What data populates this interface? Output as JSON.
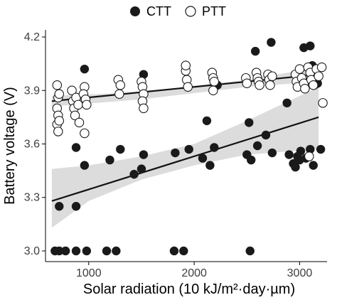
{
  "chart_data": {
    "type": "scatter",
    "xlabel": "Solar radiation (10 kJ/m²·day·µm)",
    "ylabel": "Battery voltage (V)",
    "xlim": [
      590,
      3260
    ],
    "ylim": [
      2.94,
      4.24
    ],
    "x_ticks": [
      1000,
      2000,
      3000
    ],
    "x_tick_labels": [
      "1000",
      "2000",
      "3000"
    ],
    "y_ticks": [
      3.0,
      3.3,
      3.6,
      3.9,
      4.2
    ],
    "y_tick_labels": [
      "3.0",
      "3.3",
      "3.6",
      "3.9",
      "4.2"
    ],
    "grid": false,
    "legend_position": "top-center",
    "colors": {
      "ctt": "#1a1a1a",
      "ptt_fill": "#ffffff",
      "ptt_stroke": "#1a1a1a",
      "band": "#d3d3d3",
      "line": "#111111"
    },
    "series": [
      {
        "name": "CTT",
        "marker": "filled",
        "points": [
          [
            720,
            3.25
          ],
          [
            880,
            3.25
          ],
          [
            960,
            4.02
          ],
          [
            880,
            3.58
          ],
          [
            960,
            3.48
          ],
          [
            1300,
            3.57
          ],
          [
            1200,
            3.51
          ],
          [
            1430,
            3.43
          ],
          [
            1500,
            3.46
          ],
          [
            1520,
            3.54
          ],
          [
            1520,
            3.99
          ],
          [
            1820,
            3.55
          ],
          [
            1950,
            3.57
          ],
          [
            2120,
            3.73
          ],
          [
            2080,
            3.52
          ],
          [
            2150,
            3.48
          ],
          [
            2190,
            3.58
          ],
          [
            2220,
            3.93
          ],
          [
            2520,
            3.72
          ],
          [
            2500,
            3.54
          ],
          [
            2540,
            3.51
          ],
          [
            2600,
            3.59
          ],
          [
            2580,
            4.12
          ],
          [
            2680,
            3.65
          ],
          [
            2730,
            4.17
          ],
          [
            2740,
            3.55
          ],
          [
            2880,
            3.83
          ],
          [
            2900,
            3.54
          ],
          [
            2940,
            3.49
          ],
          [
            2960,
            3.47
          ],
          [
            2980,
            3.53
          ],
          [
            3010,
            3.56
          ],
          [
            3000,
            3.51
          ],
          [
            3040,
            4.14
          ],
          [
            3100,
            4.15
          ],
          [
            3060,
            3.52
          ],
          [
            3100,
            3.57
          ],
          [
            3130,
            3.48
          ],
          [
            3200,
            3.57
          ],
          [
            3140,
            3.93
          ],
          [
            3170,
            3.94
          ],
          [
            3120,
            4.04
          ],
          [
            680,
            3.0
          ],
          [
            720,
            3.0
          ],
          [
            780,
            3.0
          ],
          [
            880,
            3.0
          ],
          [
            980,
            3.0
          ],
          [
            1170,
            3.0
          ],
          [
            1260,
            3.0
          ],
          [
            1810,
            3.0
          ],
          [
            1900,
            3.0
          ],
          [
            2530,
            3.0
          ]
        ]
      },
      {
        "name": "PTT",
        "marker": "open",
        "points": [
          [
            700,
            3.93
          ],
          [
            710,
            3.86
          ],
          [
            700,
            3.8
          ],
          [
            710,
            3.76
          ],
          [
            700,
            3.71
          ],
          [
            710,
            3.67
          ],
          [
            720,
            3.73
          ],
          [
            720,
            3.88
          ],
          [
            840,
            3.9
          ],
          [
            850,
            3.84
          ],
          [
            860,
            3.8
          ],
          [
            870,
            3.76
          ],
          [
            880,
            3.86
          ],
          [
            900,
            3.82
          ],
          [
            910,
            3.72
          ],
          [
            960,
            3.92
          ],
          [
            950,
            3.88
          ],
          [
            970,
            3.85
          ],
          [
            980,
            3.82
          ],
          [
            960,
            3.66
          ],
          [
            1280,
            3.96
          ],
          [
            1300,
            3.93
          ],
          [
            1290,
            3.88
          ],
          [
            1500,
            3.95
          ],
          [
            1510,
            3.92
          ],
          [
            1520,
            3.88
          ],
          [
            1510,
            3.84
          ],
          [
            1520,
            3.8
          ],
          [
            1920,
            4.01
          ],
          [
            1930,
            3.96
          ],
          [
            1940,
            3.92
          ],
          [
            1920,
            4.04
          ],
          [
            2170,
            4.0
          ],
          [
            2180,
            3.97
          ],
          [
            2190,
            3.95
          ],
          [
            2180,
            3.9
          ],
          [
            2490,
            3.97
          ],
          [
            2500,
            3.94
          ],
          [
            2590,
            4.0
          ],
          [
            2600,
            3.97
          ],
          [
            2610,
            3.95
          ],
          [
            2620,
            3.93
          ],
          [
            2700,
            3.99
          ],
          [
            2710,
            3.96
          ],
          [
            2720,
            3.93
          ],
          [
            2740,
            3.98
          ],
          [
            2960,
            3.99
          ],
          [
            2970,
            3.95
          ],
          [
            2980,
            3.92
          ],
          [
            3000,
            4.02
          ],
          [
            3020,
            3.97
          ],
          [
            3040,
            3.94
          ],
          [
            3050,
            3.91
          ],
          [
            3080,
            4.03
          ],
          [
            3100,
            4.0
          ],
          [
            3110,
            3.96
          ],
          [
            3130,
            3.93
          ],
          [
            3160,
            4.02
          ],
          [
            3180,
            3.98
          ],
          [
            3210,
            4.03
          ],
          [
            3220,
            3.83
          ],
          [
            3090,
            3.53
          ]
        ]
      }
    ],
    "trendlines": [
      {
        "series": "CTT",
        "from": [
          650,
          3.28
        ],
        "to": [
          3180,
          3.75
        ],
        "ci_upper": [
          [
            650,
            3.46
          ],
          [
            1000,
            3.48
          ],
          [
            1500,
            3.53
          ],
          [
            2000,
            3.6
          ],
          [
            2500,
            3.73
          ],
          [
            3180,
            3.92
          ]
        ],
        "ci_lower": [
          [
            3180,
            3.57
          ],
          [
            2500,
            3.54
          ],
          [
            2000,
            3.48
          ],
          [
            1500,
            3.4
          ],
          [
            1000,
            3.28
          ],
          [
            650,
            3.13
          ]
        ]
      },
      {
        "series": "PTT",
        "from": [
          650,
          3.84
        ],
        "to": [
          3180,
          3.99
        ],
        "ci_upper": [
          [
            650,
            3.87
          ],
          [
            1500,
            3.89
          ],
          [
            2500,
            3.96
          ],
          [
            3180,
            4.03
          ]
        ],
        "ci_lower": [
          [
            3180,
            3.95
          ],
          [
            2500,
            3.92
          ],
          [
            1500,
            3.85
          ],
          [
            650,
            3.81
          ]
        ]
      }
    ]
  }
}
